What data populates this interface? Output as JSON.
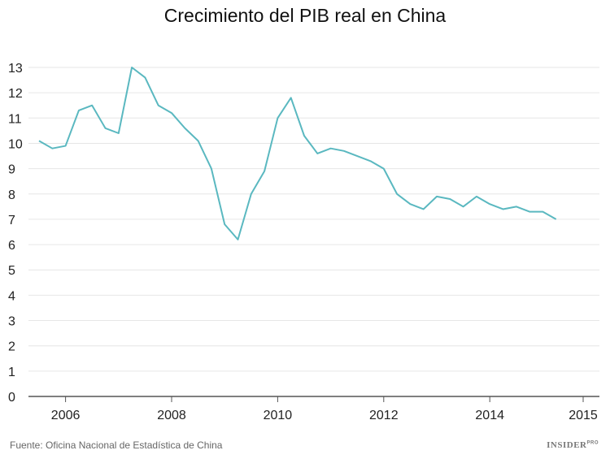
{
  "chart_data": {
    "type": "line",
    "title": "Crecimiento del PIB real en China",
    "xlabel": "",
    "ylabel": "",
    "x": [
      "2005-T3",
      "2005-T4",
      "2006-T1",
      "2006-T2",
      "2006-T3",
      "2006-T4",
      "2007-T1",
      "2007-T2",
      "2007-T3",
      "2007-T4",
      "2008-T1",
      "2008-T2",
      "2008-T3",
      "2008-T4",
      "2009-T1",
      "2009-T2",
      "2009-T3",
      "2009-T4",
      "2010-T1",
      "2010-T2",
      "2010-T3",
      "2010-T4",
      "2011-T1",
      "2011-T2",
      "2011-T3",
      "2011-T4",
      "2012-T1",
      "2012-T2",
      "2012-T3",
      "2012-T4",
      "2013-T1",
      "2013-T2",
      "2013-T3",
      "2013-T4",
      "2014-T1",
      "2014-T2",
      "2014-T3",
      "2014-T4",
      "2015-T1",
      "2015-T2"
    ],
    "series": [
      {
        "values": [
          10.1,
          9.8,
          9.9,
          11.3,
          11.5,
          10.6,
          10.4,
          13.0,
          12.6,
          11.5,
          11.2,
          10.6,
          10.1,
          9.0,
          6.8,
          6.2,
          8.0,
          8.9,
          11.0,
          11.8,
          10.3,
          9.6,
          9.8,
          9.7,
          9.5,
          9.3,
          9.0,
          8.0,
          7.6,
          7.4,
          7.9,
          7.8,
          7.5,
          7.9,
          7.6,
          7.4,
          7.5,
          7.3,
          7.3,
          7.0
        ]
      }
    ],
    "ylim": [
      0,
      13
    ],
    "yticks": [
      "0",
      "1",
      "2",
      "3",
      "4",
      "5",
      "6",
      "7",
      "8",
      "9",
      "10",
      "11",
      "12",
      "13"
    ],
    "xticks": [
      "2006",
      "2008",
      "2010",
      "2012",
      "2014",
      "2015"
    ],
    "grid": true,
    "legend": "none",
    "line_color": "#5ab8c0"
  },
  "footer": {
    "source": "Fuente: Oficina Nacional de Estadística de China",
    "logo": "INSIDER",
    "logo_sup": "PRO"
  }
}
